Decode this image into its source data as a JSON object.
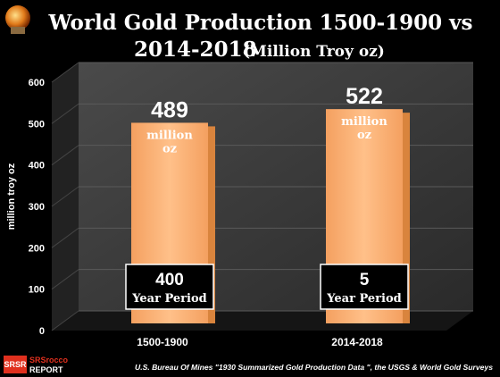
{
  "chart_data": {
    "type": "bar",
    "title": "World Gold Production 1500-1900 vs",
    "title_line2": "2014-2018",
    "title_suffix": "(Million Troy oz)",
    "ylabel": "million troy oz",
    "xlabel": "",
    "categories": [
      "1500-1900",
      "2014-2018"
    ],
    "values": [
      489,
      522
    ],
    "ylim": [
      0,
      600
    ],
    "yticks": [
      0,
      100,
      200,
      300,
      400,
      500,
      600
    ],
    "grid": true,
    "legend": "none",
    "bar_color": "#F7A35C",
    "value_labels": [
      {
        "value": "489",
        "unit1": "million",
        "unit2": "oz"
      },
      {
        "value": "522",
        "unit1": "million",
        "unit2": "oz"
      }
    ],
    "period_boxes": [
      {
        "number": "400",
        "label": "Year Period"
      },
      {
        "number": "5",
        "label": "Year Period"
      }
    ],
    "source": "U.S. Bureau Of Mines \"1930 Summarized Gold Production Data \", the USGS & World Gold Surveys"
  },
  "logo": {
    "line1": "SRSrocco",
    "line2": "REPORT",
    "badge": "SRSR"
  },
  "colors": {
    "background": "#000000",
    "plot_wall": "#3a3a3a",
    "plot_floor": "#1c1c1c",
    "bar": "#F7A35C",
    "bar_side": "#D9843D",
    "logo_red": "#E0301E"
  }
}
